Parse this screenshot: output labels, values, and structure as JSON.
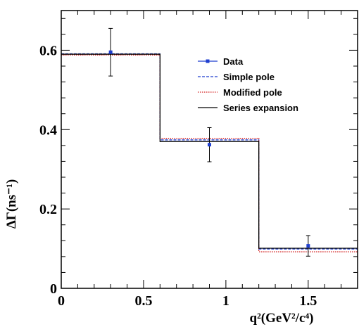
{
  "chart_data": {
    "type": "line",
    "xlabel": "q²(GeV²/c⁴)",
    "ylabel": "ΔΓ(ns⁻¹)",
    "xlim": [
      0,
      1.8
    ],
    "ylim": [
      0,
      0.7
    ],
    "x_ticks": [
      {
        "v": 0,
        "label": "0"
      },
      {
        "v": 0.5,
        "label": "0.5"
      },
      {
        "v": 1,
        "label": "1"
      },
      {
        "v": 1.5,
        "label": "1.5"
      }
    ],
    "y_ticks": [
      {
        "v": 0,
        "label": "0"
      },
      {
        "v": 0.2,
        "label": "0.2"
      },
      {
        "v": 0.4,
        "label": "0.4"
      },
      {
        "v": 0.6,
        "label": "0.6"
      }
    ],
    "bin_edges": [
      0,
      0.6,
      1.2,
      1.8
    ],
    "data": {
      "name": "Data",
      "color": "#1f3fcf",
      "points": [
        {
          "x": 0.3,
          "y": 0.595,
          "err": 0.06
        },
        {
          "x": 0.9,
          "y": 0.362,
          "err": 0.043
        },
        {
          "x": 1.5,
          "y": 0.107,
          "err": 0.026
        }
      ]
    },
    "series": [
      {
        "name": "Simple pole",
        "style": "dashed",
        "color": "#1f3fcf",
        "values": [
          0.591,
          0.374,
          0.099
        ]
      },
      {
        "name": "Modified pole",
        "style": "dotted",
        "color": "#d42020",
        "values": [
          0.588,
          0.378,
          0.092
        ]
      },
      {
        "name": "Series expansion",
        "style": "solid",
        "color": "#000000",
        "values": [
          0.59,
          0.37,
          0.101
        ]
      }
    ],
    "legend": {
      "position": "top-right"
    }
  }
}
